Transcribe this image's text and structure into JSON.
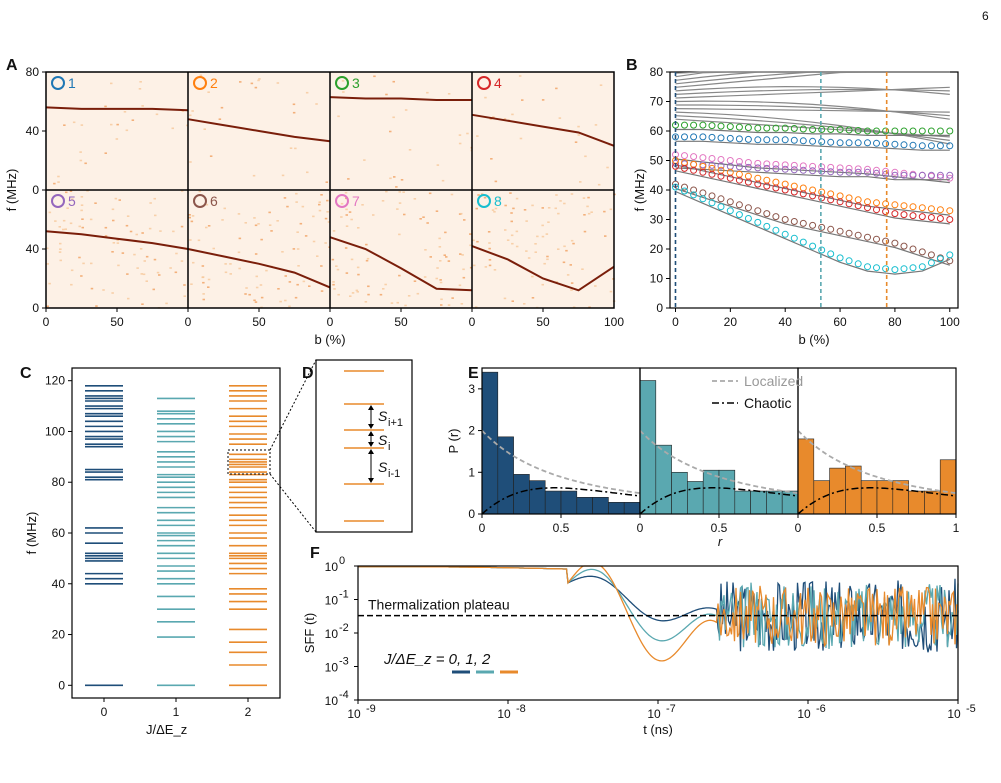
{
  "page_number": "6",
  "chart_data": [
    {
      "panel": "A",
      "type": "heatmap",
      "subpanels": [
        "1",
        "2",
        "3",
        "4",
        "5",
        "6",
        "7",
        "8"
      ],
      "subpanel_colors": [
        "#1f77b4",
        "#ff7f0e",
        "#2ca02c",
        "#d62728",
        "#9467bd",
        "#8c564b",
        "#e377c2",
        "#17becf"
      ],
      "xlabel": "b (%)",
      "ylabel": "f (MHz)",
      "xlim": [
        0,
        100
      ],
      "ylim": [
        0,
        80
      ],
      "xticks": [
        "0",
        "50",
        "100"
      ],
      "yticks": [
        "0",
        "40",
        "80"
      ],
      "traces": [
        {
          "x": [
            0,
            25,
            50,
            75,
            100
          ],
          "y": [
            56,
            55,
            55,
            55,
            54
          ]
        },
        {
          "x": [
            0,
            25,
            50,
            75,
            100
          ],
          "y": [
            48,
            44,
            40,
            36,
            33
          ]
        },
        {
          "x": [
            0,
            25,
            50,
            75,
            100
          ],
          "y": [
            63,
            62,
            62,
            61,
            61
          ]
        },
        {
          "x": [
            0,
            25,
            50,
            75,
            100
          ],
          "y": [
            51,
            47,
            43,
            39,
            30
          ]
        },
        {
          "x": [
            0,
            25,
            50,
            75,
            100
          ],
          "y": [
            52,
            50,
            47,
            44,
            40
          ]
        },
        {
          "x": [
            0,
            25,
            50,
            75,
            100
          ],
          "y": [
            40,
            35,
            30,
            24,
            14
          ]
        },
        {
          "x": [
            0,
            25,
            50,
            75,
            100
          ],
          "y": [
            48,
            40,
            27,
            13,
            12
          ]
        },
        {
          "x": [
            0,
            25,
            50,
            75,
            100
          ],
          "y": [
            42,
            33,
            20,
            12,
            28
          ]
        }
      ]
    },
    {
      "panel": "B",
      "type": "scatter",
      "xlabel": "b (%)",
      "ylabel": "f (MHz)",
      "xlim": [
        -2,
        103
      ],
      "ylim": [
        0,
        80
      ],
      "xticks": [
        0,
        20,
        40,
        60,
        80,
        100
      ],
      "yticks": [
        0,
        10,
        20,
        30,
        40,
        50,
        60,
        70,
        80
      ],
      "vlines": [
        {
          "x": 0,
          "color": "#1f4e79"
        },
        {
          "x": 53,
          "color": "#5aa8b0"
        },
        {
          "x": 77,
          "color": "#e88a2c"
        }
      ],
      "series": [
        {
          "color": "#2ca02c",
          "x": [
            0,
            10,
            20,
            30,
            40,
            50,
            60,
            70,
            80,
            90,
            100
          ],
          "y": [
            62,
            62,
            61.5,
            61,
            61,
            60.5,
            60.5,
            60,
            60,
            60,
            60
          ]
        },
        {
          "color": "#1f77b4",
          "x": [
            0,
            10,
            20,
            30,
            40,
            50,
            60,
            70,
            80,
            90,
            100
          ],
          "y": [
            58,
            58,
            57.5,
            57,
            57,
            56.5,
            56,
            56,
            55.5,
            55,
            55
          ]
        },
        {
          "color": "#e377c2",
          "x": [
            0,
            10,
            20,
            30,
            40,
            50,
            60,
            70,
            80,
            90,
            100
          ],
          "y": [
            52,
            51,
            50,
            49,
            48.5,
            48,
            47.5,
            47,
            46,
            45,
            44
          ]
        },
        {
          "color": "#9467bd",
          "x": [
            0,
            10,
            20,
            30,
            40,
            50,
            60,
            70,
            80,
            90,
            100
          ],
          "y": [
            49,
            48.5,
            48,
            47.5,
            47,
            46.5,
            46,
            46,
            45,
            45,
            45
          ]
        },
        {
          "color": "#ff7f0e",
          "x": [
            0,
            10,
            20,
            30,
            40,
            50,
            60,
            70,
            80,
            90,
            100
          ],
          "y": [
            50,
            48,
            46,
            44,
            42,
            40,
            38,
            36,
            35,
            34,
            33
          ]
        },
        {
          "color": "#d62728",
          "x": [
            0,
            10,
            20,
            30,
            40,
            50,
            60,
            70,
            80,
            90,
            100
          ],
          "y": [
            48,
            46,
            44,
            42,
            40,
            38,
            36,
            34,
            32,
            31,
            30
          ]
        },
        {
          "color": "#8c564b",
          "x": [
            0,
            10,
            20,
            30,
            40,
            50,
            60,
            70,
            80,
            90,
            100
          ],
          "y": [
            42,
            39,
            36,
            33,
            30,
            28,
            26,
            24,
            22,
            19,
            16
          ]
        },
        {
          "color": "#17becf",
          "x": [
            0,
            10,
            20,
            30,
            40,
            50,
            60,
            70,
            80,
            90,
            100
          ],
          "y": [
            41,
            37,
            33,
            29,
            25,
            21,
            17,
            14,
            13,
            14,
            18
          ]
        }
      ]
    },
    {
      "panel": "C",
      "type": "line",
      "xlabel": "J/ΔE_z",
      "ylabel": "f (MHz)",
      "xticks": [
        "0",
        "1",
        "2"
      ],
      "yticks": [
        0,
        20,
        40,
        60,
        80,
        100,
        120
      ],
      "ylim": [
        -5,
        125
      ],
      "series": [
        {
          "name": "0",
          "color": "#1f4e79",
          "levels": [
            0,
            40,
            42,
            44,
            49,
            50,
            51,
            52,
            56,
            60,
            62,
            81,
            82,
            84,
            85,
            94,
            95,
            97,
            98,
            100,
            102,
            104,
            106,
            107,
            109,
            110,
            112,
            113,
            114,
            116,
            118
          ]
        },
        {
          "name": "1",
          "color": "#5aa8b0",
          "levels": [
            0,
            19,
            25,
            30,
            35,
            40,
            42,
            45,
            47,
            50,
            52,
            55,
            57,
            59,
            60,
            63,
            65,
            68,
            70,
            74,
            76,
            78,
            80,
            82,
            83,
            86,
            88,
            90,
            92,
            96,
            98,
            100,
            103,
            105,
            107,
            108,
            113
          ]
        },
        {
          "name": "2",
          "color": "#e88a2c",
          "levels": [
            0,
            8,
            13,
            17,
            22,
            30,
            33,
            36,
            38,
            44,
            46,
            48,
            50,
            51,
            52,
            55,
            58,
            60,
            63,
            65,
            67,
            70,
            72,
            74,
            76,
            78,
            80,
            81,
            83,
            84,
            86,
            87,
            88,
            89,
            91,
            95,
            97,
            99,
            102,
            104,
            106,
            109,
            112,
            114,
            116,
            118
          ]
        }
      ]
    },
    {
      "panel": "D",
      "type": "line",
      "labels": [
        "S",
        "i+1",
        "S",
        "i",
        "S",
        "i-1"
      ]
    },
    {
      "panel": "E",
      "type": "bar",
      "xlabel": "r",
      "ylabel": "P (r)",
      "xlim": [
        0,
        1
      ],
      "ylim": [
        0,
        3.5
      ],
      "xticks": [
        "0",
        "0.5",
        "1"
      ],
      "yticks": [
        "0",
        "1",
        "2",
        "3"
      ],
      "bin_width": 0.1,
      "series": [
        {
          "name": "0",
          "color": "#1f4e79",
          "values": [
            3.4,
            1.85,
            0.95,
            0.8,
            0.55,
            0.55,
            0.4,
            0.4,
            0.28,
            0.28
          ]
        },
        {
          "name": "1",
          "color": "#5aa8b0",
          "values": [
            3.2,
            1.65,
            1.0,
            0.78,
            1.05,
            1.05,
            0.55,
            0.55,
            0.55,
            0.55
          ]
        },
        {
          "name": "2",
          "color": "#e88a2c",
          "values": [
            1.8,
            0.8,
            1.1,
            1.15,
            0.8,
            0.8,
            0.8,
            0.55,
            0.55,
            1.3
          ]
        }
      ],
      "legend": [
        "Localized",
        "Chaotic"
      ]
    },
    {
      "panel": "F",
      "type": "line",
      "xlabel": "t (ns)",
      "ylabel": "SFF (t)",
      "xscale": "log",
      "yscale": "log",
      "xlim": [
        1e-09,
        1e-05
      ],
      "ylim": [
        0.0001,
        1
      ],
      "xticks": [
        "10",
        "10",
        "10",
        "10",
        "10"
      ],
      "xtick_exp": [
        "-9",
        "-8",
        "-7",
        "-6",
        "-5"
      ],
      "yticks": [
        "10",
        "10",
        "10",
        "10",
        "10"
      ],
      "ytick_exp": [
        "0",
        "-1",
        "-2",
        "-3",
        "-4"
      ],
      "plateau": 0.033,
      "plateau_label": "Thermalization plateau",
      "legend_text": "J/ΔE_z = 0, 1, 2",
      "series": [
        {
          "name": "0",
          "color": "#1f4e79"
        },
        {
          "name": "1",
          "color": "#5aa8b0"
        },
        {
          "name": "2",
          "color": "#e88a2c"
        }
      ]
    }
  ]
}
